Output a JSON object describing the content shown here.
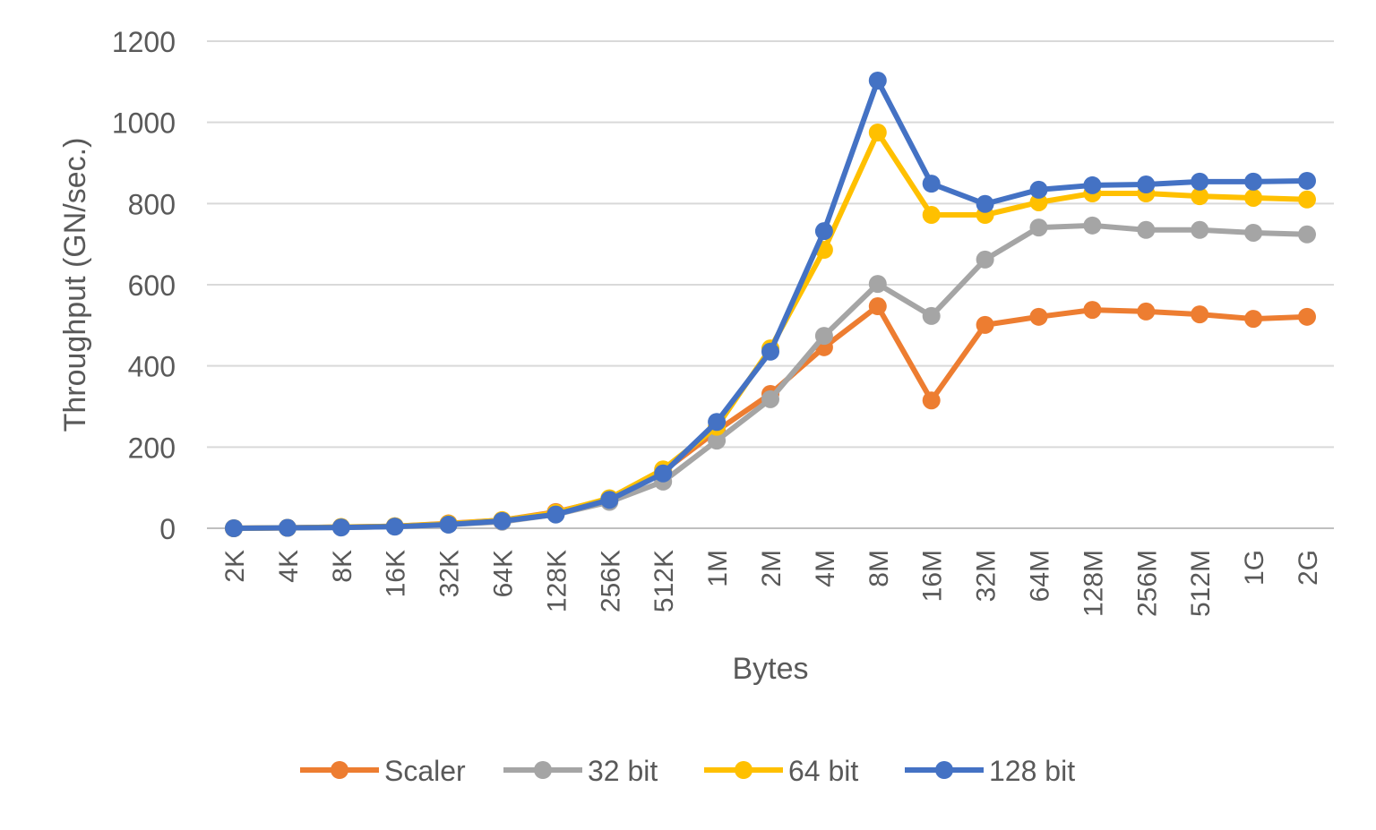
{
  "chart_data": {
    "type": "line",
    "title": "",
    "xlabel": "Bytes",
    "ylabel": "Throughput (GN/sec.)",
    "ylim": [
      0,
      1200
    ],
    "yticks": [
      0,
      200,
      400,
      600,
      800,
      1000,
      1200
    ],
    "grid": true,
    "legend": "bottom",
    "categories": [
      "2K",
      "4K",
      "8K",
      "16K",
      "32K",
      "64K",
      "128K",
      "256K",
      "512K",
      "1M",
      "2M",
      "4M",
      "8M",
      "16M",
      "32M",
      "64M",
      "128M",
      "256M",
      "512M",
      "1G",
      "2G"
    ],
    "series": [
      {
        "name": "Scaler",
        "color": "#ED7D31",
        "values": [
          0,
          1,
          3,
          5,
          12,
          20,
          40,
          72,
          140,
          240,
          331,
          446,
          547,
          315,
          501,
          521,
          538,
          534,
          527,
          516,
          521
        ]
      },
      {
        "name": "32 bit",
        "color": "#A5A5A5",
        "values": [
          0,
          1,
          2,
          4,
          9,
          16,
          34,
          65,
          115,
          216,
          318,
          474,
          602,
          523,
          662,
          741,
          746,
          735,
          735,
          728,
          724
        ]
      },
      {
        "name": "64 bit",
        "color": "#FFC000",
        "values": [
          0,
          1,
          3,
          5,
          11,
          20,
          38,
          74,
          145,
          250,
          443,
          686,
          975,
          772,
          772,
          803,
          825,
          825,
          818,
          814,
          810
        ]
      },
      {
        "name": "128 bit",
        "color": "#4472C4",
        "values": [
          0,
          1,
          2,
          4,
          9,
          18,
          34,
          70,
          135,
          262,
          435,
          732,
          1103,
          849,
          799,
          834,
          845,
          847,
          854,
          854,
          856
        ]
      }
    ]
  }
}
